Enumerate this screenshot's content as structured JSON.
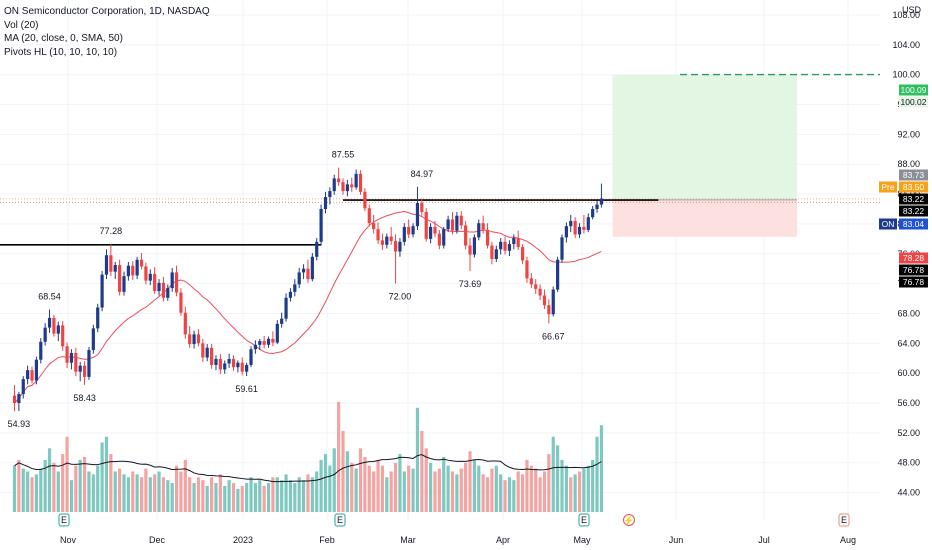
{
  "legend": {
    "title": "ON Semiconductor Corporation, 1D, NASDAQ",
    "vol": "Vol (20)",
    "ma": "MA (20, close, 0, SMA, 50)",
    "pivots": "Pivots HL (10, 10, 10, 10)"
  },
  "colors": {
    "up": "#1e3a8a",
    "down": "#ef4444",
    "vol_up": "#7ec8c0",
    "vol_down": "#f4a3a3",
    "ma": "#ef4b5f",
    "vol_ma": "#131722",
    "target_zone": "#e3f6e3",
    "stop_zone": "#fde0e0",
    "target_line": "#2a9d5c",
    "grid": "#f0f3fa"
  },
  "chart_data": {
    "type": "candlestick",
    "symbol": "ON",
    "currency": "USD",
    "ylim": [
      42,
      112
    ],
    "y_ticks": [
      "108.00",
      "104.00",
      "100.00",
      "96.00",
      "92.00",
      "88.00",
      "84.00",
      "80.00",
      "76.00",
      "72.00",
      "68.00",
      "64.00",
      "60.00",
      "56.00",
      "52.00",
      "48.00",
      "44.00"
    ],
    "x_labels": [
      "Nov",
      "Dec",
      "2023",
      "Feb",
      "Mar",
      "Apr",
      "May",
      "Jun",
      "Jul",
      "Aug"
    ],
    "pivot_labels": [
      {
        "label": "54.93",
        "date_index": 1,
        "value": 54.93,
        "pos": "below"
      },
      {
        "label": "68.54",
        "date_index": 8,
        "value": 68.54,
        "pos": "above"
      },
      {
        "label": "58.43",
        "date_index": 16,
        "value": 58.43,
        "pos": "below"
      },
      {
        "label": "77.28",
        "date_index": 22,
        "value": 77.28,
        "pos": "above"
      },
      {
        "label": "59.61",
        "date_index": 53,
        "value": 59.61,
        "pos": "below"
      },
      {
        "label": "87.55",
        "date_index": 75,
        "value": 87.55,
        "pos": "above"
      },
      {
        "label": "84.97",
        "date_index": 93,
        "value": 84.97,
        "pos": "above"
      },
      {
        "label": "72.00",
        "date_index": 88,
        "value": 72.0,
        "pos": "below"
      },
      {
        "label": "73.69",
        "date_index": 104,
        "value": 73.69,
        "pos": "below"
      },
      {
        "label": "66.67",
        "date_index": 123,
        "value": 66.67,
        "pos": "below"
      }
    ],
    "horizontal_lines": [
      {
        "value": 77.2,
        "from_index": -4,
        "to_index": 70
      },
      {
        "value": 83.2,
        "from_index": 75,
        "to_index": 147
      }
    ],
    "position": {
      "entry": 83.22,
      "target": 100.02,
      "stop": 78.28,
      "from_index": 137,
      "to_index": 170
    },
    "price_tags": [
      {
        "label": "USD",
        "kind": "header"
      },
      {
        "label": "100.09",
        "kind": "green"
      },
      {
        "label": "100.02",
        "kind": "light"
      },
      {
        "label": "83.73",
        "kind": "gray"
      },
      {
        "label": "Pre",
        "kind": "pre"
      },
      {
        "label": "83.50",
        "kind": "preval"
      },
      {
        "label": "83.22",
        "kind": "black"
      },
      {
        "label": "83.22",
        "kind": "black"
      },
      {
        "label": "ON",
        "kind": "symbol"
      },
      {
        "label": "83.04",
        "kind": "blue"
      },
      {
        "label": "78.28",
        "kind": "red"
      },
      {
        "label": "76.78",
        "kind": "black"
      },
      {
        "label": "76.78",
        "kind": "black"
      }
    ],
    "earnings_markers": [
      "E",
      "E",
      "E",
      "E"
    ],
    "ohlc": [
      [
        57.0,
        58.4,
        54.9,
        56.0
      ],
      [
        56.0,
        57.5,
        54.93,
        57.2
      ],
      [
        57.2,
        59.6,
        56.6,
        59.2
      ],
      [
        59.2,
        61.0,
        58.5,
        60.4
      ],
      [
        60.4,
        60.9,
        58.6,
        59.0
      ],
      [
        59.0,
        62.2,
        58.5,
        61.8
      ],
      [
        61.8,
        64.7,
        61.3,
        64.2
      ],
      [
        64.2,
        66.7,
        63.7,
        66.1
      ],
      [
        66.1,
        68.54,
        65.4,
        67.4
      ],
      [
        67.4,
        67.8,
        64.9,
        65.3
      ],
      [
        65.3,
        66.9,
        64.3,
        66.4
      ],
      [
        66.4,
        67.0,
        63.0,
        63.6
      ],
      [
        63.6,
        64.1,
        60.7,
        61.4
      ],
      [
        61.4,
        63.2,
        60.5,
        62.7
      ],
      [
        62.7,
        63.4,
        59.6,
        60.2
      ],
      [
        60.2,
        61.5,
        58.9,
        61.0
      ],
      [
        61.0,
        61.6,
        58.43,
        59.5
      ],
      [
        59.5,
        63.5,
        59.1,
        63.1
      ],
      [
        63.1,
        66.5,
        62.6,
        66.0
      ],
      [
        66.0,
        69.3,
        65.5,
        68.8
      ],
      [
        68.8,
        73.7,
        68.3,
        73.2
      ],
      [
        73.2,
        76.6,
        72.6,
        75.8
      ],
      [
        75.8,
        77.28,
        73.0,
        73.6
      ],
      [
        73.6,
        74.9,
        72.6,
        74.5
      ],
      [
        74.5,
        75.2,
        70.4,
        70.9
      ],
      [
        70.9,
        73.6,
        70.4,
        73.0
      ],
      [
        73.0,
        74.9,
        72.4,
        74.4
      ],
      [
        74.4,
        75.0,
        72.5,
        73.1
      ],
      [
        73.1,
        75.6,
        72.6,
        75.2
      ],
      [
        75.2,
        76.1,
        73.9,
        74.3
      ],
      [
        74.3,
        74.8,
        71.9,
        72.4
      ],
      [
        72.4,
        73.9,
        71.8,
        73.3
      ],
      [
        73.3,
        74.2,
        70.6,
        71.0
      ],
      [
        71.0,
        72.6,
        70.4,
        72.1
      ],
      [
        72.1,
        72.9,
        69.6,
        70.1
      ],
      [
        70.1,
        71.9,
        69.7,
        71.4
      ],
      [
        71.4,
        74.1,
        70.9,
        73.5
      ],
      [
        73.5,
        74.4,
        70.3,
        70.8
      ],
      [
        70.8,
        71.4,
        67.7,
        68.1
      ],
      [
        68.1,
        68.9,
        64.6,
        65.2
      ],
      [
        65.2,
        66.3,
        63.4,
        63.9
      ],
      [
        63.9,
        65.7,
        63.3,
        65.2
      ],
      [
        65.2,
        65.9,
        63.6,
        64.0
      ],
      [
        64.0,
        64.6,
        61.5,
        62.1
      ],
      [
        62.1,
        63.9,
        61.6,
        63.4
      ],
      [
        63.4,
        63.9,
        60.6,
        61.1
      ],
      [
        61.1,
        62.4,
        60.4,
        61.9
      ],
      [
        61.9,
        62.6,
        59.9,
        60.5
      ],
      [
        60.5,
        61.7,
        59.9,
        61.3
      ],
      [
        61.3,
        62.6,
        60.7,
        61.9
      ],
      [
        61.9,
        62.4,
        60.3,
        60.8
      ],
      [
        60.8,
        61.7,
        60.1,
        61.4
      ],
      [
        61.4,
        62.1,
        59.7,
        60.2
      ],
      [
        60.2,
        61.4,
        59.61,
        61.1
      ],
      [
        61.1,
        63.6,
        60.8,
        63.2
      ],
      [
        63.2,
        64.4,
        62.6,
        63.8
      ],
      [
        63.8,
        64.6,
        63.1,
        64.3
      ],
      [
        64.3,
        65.0,
        63.3,
        63.8
      ],
      [
        63.8,
        64.9,
        63.4,
        64.6
      ],
      [
        64.6,
        65.6,
        63.6,
        64.1
      ],
      [
        64.1,
        67.1,
        63.9,
        66.6
      ],
      [
        66.6,
        68.1,
        66.1,
        67.3
      ],
      [
        67.3,
        70.7,
        66.9,
        70.1
      ],
      [
        70.1,
        71.4,
        69.6,
        70.9
      ],
      [
        70.9,
        72.6,
        70.3,
        71.9
      ],
      [
        71.9,
        74.1,
        71.4,
        73.5
      ],
      [
        73.5,
        74.6,
        72.6,
        74.0
      ],
      [
        74.0,
        75.2,
        72.1,
        72.6
      ],
      [
        72.6,
        76.1,
        72.3,
        75.6
      ],
      [
        75.6,
        78.1,
        75.1,
        77.6
      ],
      [
        77.6,
        82.6,
        77.1,
        82.0
      ],
      [
        82.0,
        84.3,
        81.4,
        83.6
      ],
      [
        83.6,
        84.9,
        82.6,
        84.4
      ],
      [
        84.4,
        86.6,
        83.9,
        86.1
      ],
      [
        86.1,
        87.55,
        85.1,
        85.6
      ],
      [
        85.6,
        86.1,
        83.9,
        84.4
      ],
      [
        84.4,
        85.9,
        83.7,
        85.3
      ],
      [
        85.3,
        86.2,
        84.3,
        84.9
      ],
      [
        84.9,
        87.3,
        84.6,
        86.7
      ],
      [
        86.7,
        87.2,
        83.9,
        84.3
      ],
      [
        84.3,
        84.8,
        81.7,
        82.1
      ],
      [
        82.1,
        82.6,
        79.7,
        80.1
      ],
      [
        80.1,
        81.2,
        78.7,
        79.3
      ],
      [
        79.3,
        80.2,
        77.3,
        77.8
      ],
      [
        77.8,
        78.7,
        76.5,
        77.2
      ],
      [
        77.2,
        78.7,
        76.7,
        78.3
      ],
      [
        78.3,
        79.6,
        77.2,
        77.7
      ],
      [
        77.7,
        78.6,
        72.0,
        76.3
      ],
      [
        76.3,
        78.1,
        75.6,
        77.6
      ],
      [
        77.6,
        80.1,
        77.1,
        79.6
      ],
      [
        79.6,
        80.6,
        78.1,
        78.6
      ],
      [
        78.6,
        80.1,
        78.2,
        79.7
      ],
      [
        79.7,
        84.97,
        79.2,
        82.8
      ],
      [
        82.8,
        83.4,
        81.1,
        81.6
      ],
      [
        81.6,
        82.1,
        77.6,
        78.0
      ],
      [
        78.0,
        80.1,
        77.4,
        79.6
      ],
      [
        79.6,
        80.4,
        78.2,
        78.7
      ],
      [
        78.7,
        79.2,
        76.6,
        77.1
      ],
      [
        77.1,
        79.6,
        76.7,
        79.3
      ],
      [
        79.3,
        81.1,
        78.9,
        80.6
      ],
      [
        80.6,
        81.6,
        78.6,
        79.1
      ],
      [
        79.1,
        81.6,
        78.7,
        81.1
      ],
      [
        81.1,
        81.7,
        79.3,
        79.8
      ],
      [
        79.8,
        80.4,
        76.6,
        77.1
      ],
      [
        77.1,
        78.1,
        73.69,
        75.9
      ],
      [
        75.9,
        78.6,
        75.5,
        78.2
      ],
      [
        78.2,
        80.6,
        77.8,
        80.1
      ],
      [
        80.1,
        81.1,
        78.7,
        79.2
      ],
      [
        79.2,
        80.1,
        76.7,
        77.1
      ],
      [
        77.1,
        77.6,
        74.6,
        75.3
      ],
      [
        75.3,
        77.1,
        74.9,
        76.6
      ],
      [
        76.6,
        78.1,
        75.9,
        77.6
      ],
      [
        77.6,
        78.3,
        75.9,
        76.4
      ],
      [
        76.4,
        77.8,
        75.7,
        77.3
      ],
      [
        77.3,
        78.6,
        76.6,
        78.1
      ],
      [
        78.1,
        79.1,
        76.5,
        76.9
      ],
      [
        76.9,
        77.3,
        74.6,
        75.1
      ],
      [
        75.1,
        75.6,
        72.1,
        72.7
      ],
      [
        72.7,
        73.4,
        71.4,
        71.9
      ],
      [
        71.9,
        72.6,
        70.6,
        71.3
      ],
      [
        71.3,
        71.9,
        69.8,
        70.4
      ],
      [
        70.4,
        71.2,
        68.6,
        69.1
      ],
      [
        69.1,
        69.9,
        66.67,
        67.9
      ],
      [
        67.9,
        71.6,
        67.6,
        71.2
      ],
      [
        71.2,
        75.6,
        70.9,
        75.2
      ],
      [
        75.2,
        78.6,
        74.8,
        78.2
      ],
      [
        78.2,
        80.2,
        77.5,
        79.7
      ],
      [
        79.7,
        81.2,
        78.9,
        80.4
      ],
      [
        80.4,
        80.9,
        78.1,
        78.6
      ],
      [
        78.6,
        80.1,
        78.1,
        79.6
      ],
      [
        79.6,
        81.2,
        78.7,
        79.2
      ],
      [
        79.2,
        81.4,
        78.9,
        80.9
      ],
      [
        80.9,
        82.4,
        80.6,
        82.0
      ],
      [
        82.0,
        83.1,
        81.5,
        82.6
      ],
      [
        82.6,
        85.4,
        82.2,
        83.4
      ]
    ],
    "volume": [
      [
        16,
        0
      ],
      [
        18,
        1
      ],
      [
        15,
        0
      ],
      [
        14,
        0
      ],
      [
        12,
        1
      ],
      [
        13,
        0
      ],
      [
        15,
        0
      ],
      [
        18,
        0
      ],
      [
        22,
        0
      ],
      [
        17,
        1
      ],
      [
        14,
        0
      ],
      [
        20,
        1
      ],
      [
        26,
        1
      ],
      [
        11,
        0
      ],
      [
        16,
        1
      ],
      [
        18,
        0
      ],
      [
        19,
        1
      ],
      [
        14,
        0
      ],
      [
        13,
        0
      ],
      [
        16,
        0
      ],
      [
        24,
        0
      ],
      [
        26,
        0
      ],
      [
        20,
        1
      ],
      [
        14,
        0
      ],
      [
        15,
        1
      ],
      [
        13,
        0
      ],
      [
        12,
        0
      ],
      [
        14,
        1
      ],
      [
        13,
        0
      ],
      [
        12,
        1
      ],
      [
        15,
        1
      ],
      [
        12,
        0
      ],
      [
        13,
        1
      ],
      [
        14,
        0
      ],
      [
        12,
        1
      ],
      [
        11,
        0
      ],
      [
        10,
        0
      ],
      [
        16,
        1
      ],
      [
        14,
        1
      ],
      [
        18,
        1
      ],
      [
        12,
        1
      ],
      [
        10,
        0
      ],
      [
        12,
        1
      ],
      [
        11,
        1
      ],
      [
        9,
        0
      ],
      [
        12,
        1
      ],
      [
        10,
        0
      ],
      [
        13,
        1
      ],
      [
        9,
        0
      ],
      [
        11,
        0
      ],
      [
        10,
        1
      ],
      [
        8,
        0
      ],
      [
        9,
        1
      ],
      [
        10,
        0
      ],
      [
        12,
        0
      ],
      [
        10,
        0
      ],
      [
        11,
        0
      ],
      [
        9,
        1
      ],
      [
        10,
        0
      ],
      [
        12,
        1
      ],
      [
        12,
        0
      ],
      [
        11,
        0
      ],
      [
        13,
        0
      ],
      [
        11,
        0
      ],
      [
        10,
        0
      ],
      [
        12,
        0
      ],
      [
        11,
        0
      ],
      [
        13,
        1
      ],
      [
        12,
        0
      ],
      [
        14,
        0
      ],
      [
        18,
        0
      ],
      [
        20,
        0
      ],
      [
        16,
        0
      ],
      [
        22,
        0
      ],
      [
        38,
        1
      ],
      [
        28,
        1
      ],
      [
        21,
        0
      ],
      [
        17,
        1
      ],
      [
        15,
        0
      ],
      [
        22,
        1
      ],
      [
        19,
        1
      ],
      [
        16,
        1
      ],
      [
        14,
        1
      ],
      [
        18,
        1
      ],
      [
        16,
        1
      ],
      [
        12,
        0
      ],
      [
        14,
        1
      ],
      [
        17,
        1
      ],
      [
        20,
        0
      ],
      [
        14,
        0
      ],
      [
        16,
        1
      ],
      [
        15,
        0
      ],
      [
        36,
        0
      ],
      [
        28,
        1
      ],
      [
        22,
        1
      ],
      [
        17,
        0
      ],
      [
        14,
        1
      ],
      [
        15,
        1
      ],
      [
        19,
        0
      ],
      [
        16,
        0
      ],
      [
        14,
        1
      ],
      [
        13,
        0
      ],
      [
        15,
        1
      ],
      [
        17,
        1
      ],
      [
        21,
        1
      ],
      [
        18,
        0
      ],
      [
        16,
        0
      ],
      [
        13,
        1
      ],
      [
        12,
        1
      ],
      [
        15,
        1
      ],
      [
        16,
        0
      ],
      [
        13,
        0
      ],
      [
        11,
        1
      ],
      [
        12,
        0
      ],
      [
        11,
        0
      ],
      [
        14,
        1
      ],
      [
        13,
        1
      ],
      [
        18,
        1
      ],
      [
        16,
        1
      ],
      [
        15,
        1
      ],
      [
        12,
        1
      ],
      [
        14,
        1
      ],
      [
        20,
        1
      ],
      [
        26,
        0
      ],
      [
        23,
        0
      ],
      [
        18,
        0
      ],
      [
        16,
        0
      ],
      [
        12,
        1
      ],
      [
        13,
        0
      ],
      [
        14,
        1
      ],
      [
        15,
        0
      ],
      [
        16,
        0
      ],
      [
        18,
        0
      ],
      [
        26,
        0
      ],
      [
        30,
        0
      ]
    ],
    "vol_ylim": [
      0,
      38
    ]
  }
}
